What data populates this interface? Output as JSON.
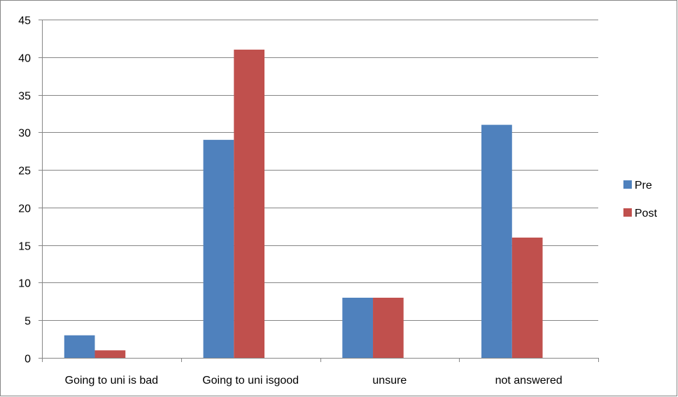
{
  "chart_data": {
    "type": "bar",
    "title": "",
    "xlabel": "",
    "ylabel": "",
    "categories": [
      "Going to uni is bad",
      "Going to uni isgood",
      "unsure",
      "not answered"
    ],
    "series": [
      {
        "name": "Pre",
        "values": [
          3,
          29,
          8,
          31
        ],
        "color": "#4F81BD"
      },
      {
        "name": "Post",
        "values": [
          1,
          41,
          8,
          16
        ],
        "color": "#C0504D"
      }
    ],
    "ylim": [
      0,
      45
    ],
    "yticks": [
      0,
      5,
      10,
      15,
      20,
      25,
      30,
      35,
      40,
      45
    ],
    "grid": true,
    "legend_position": "right",
    "colors": {
      "gridline": "#868686",
      "axis": "#868686",
      "border": "#868686"
    }
  }
}
